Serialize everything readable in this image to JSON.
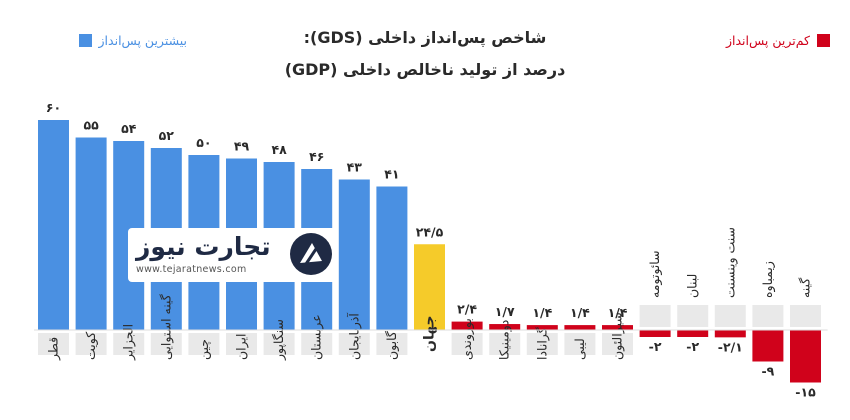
{
  "chart_data": {
    "type": "bar",
    "title": "شاخص پس‌انداز داخلی (GDS):",
    "subtitle": "درصد از تولید ناخالص داخلی (GDP)",
    "legend": [
      {
        "label": "بیشترین پس‌انداز",
        "color": "#4a90e2"
      },
      {
        "label": "کم‌ترین پس‌انداز",
        "color": "#d0021b"
      }
    ],
    "categories": [
      "قطر",
      "کویت",
      "الجزایر",
      "گینه استوایی",
      "چین",
      "ایران",
      "سنگاپور",
      "عربستان",
      "آذربایجان",
      "گابون",
      "جهان",
      "بوروندی",
      "دومینیکا",
      "گرانادا",
      "لیبی",
      "سیرالئون",
      "سائوتومه",
      "لبنان",
      "سنت وینسنت",
      "زیمباوه",
      "گینه"
    ],
    "values": [
      60,
      55,
      54,
      52,
      50,
      49,
      48,
      46,
      43,
      41,
      24.5,
      2.4,
      1.7,
      1.4,
      1.4,
      1.4,
      -2,
      -2,
      -2.1,
      -9,
      -15
    ],
    "value_labels": [
      "۶۰",
      "۵۵",
      "۵۴",
      "۵۲",
      "۵۰",
      "۴۹",
      "۴۸",
      "۴۶",
      "۴۳",
      "۴۱",
      "۲۴/۵",
      "۲/۴",
      "۱/۷",
      "۱/۴",
      "۱/۴",
      "۱/۴",
      "-۲",
      "-۲",
      "-۲/۱",
      "-۹",
      "-۱۵"
    ],
    "groups": [
      "high",
      "high",
      "high",
      "high",
      "high",
      "high",
      "high",
      "high",
      "high",
      "high",
      "world",
      "low",
      "low",
      "low",
      "low",
      "low",
      "low",
      "low",
      "low",
      "low",
      "low"
    ],
    "colors": {
      "high": "#4a90e2",
      "world": "#f5cb2a",
      "low": "#d0021b",
      "text": "#2a2a2a",
      "stripe": "#e9e9e9"
    }
  },
  "watermark": {
    "name": "تجارت نیوز",
    "url": "www.tejaratnews.com"
  }
}
